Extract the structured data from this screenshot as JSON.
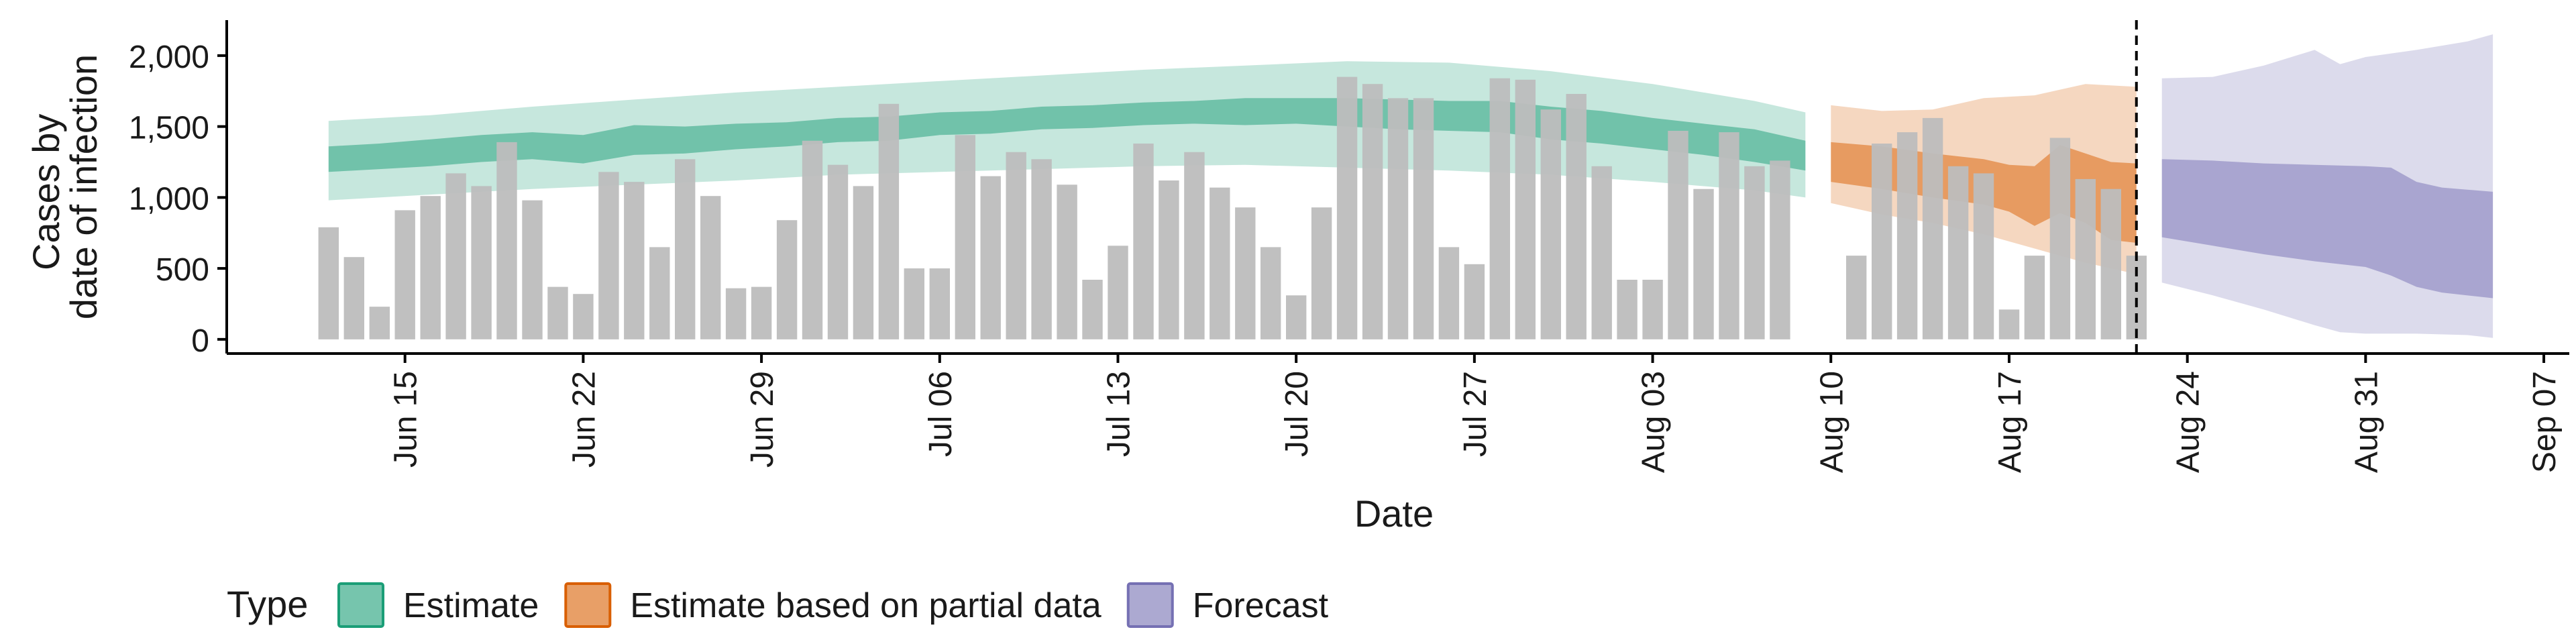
{
  "chart_data": {
    "type": "bar",
    "xlabel": "Date",
    "ylabel_lines": [
      "Cases by",
      "date of infection"
    ],
    "y_ticks": [
      0,
      500,
      1000,
      1500,
      2000
    ],
    "y_tick_labels": [
      "0",
      "500",
      "1,000",
      "1,500",
      "2,000"
    ],
    "ylim": [
      -100,
      2250
    ],
    "xlim": [
      "2020-06-08",
      "2020-09-08"
    ],
    "x_ticks": [
      "2020-06-15",
      "2020-06-22",
      "2020-06-29",
      "2020-07-06",
      "2020-07-13",
      "2020-07-20",
      "2020-07-27",
      "2020-08-03",
      "2020-08-10",
      "2020-08-17",
      "2020-08-24",
      "2020-08-31",
      "2020-09-07"
    ],
    "x_tick_labels": [
      "Jun 15",
      "Jun 22",
      "Jun 29",
      "Jul 06",
      "Jul 13",
      "Jul 20",
      "Jul 27",
      "Aug 03",
      "Aug 10",
      "Aug 17",
      "Aug 24",
      "Aug 31",
      "Sep 07"
    ],
    "bar_color": "#bdbdbd",
    "bars": {
      "dates": [
        "2020-06-12",
        "2020-06-13",
        "2020-06-14",
        "2020-06-15",
        "2020-06-16",
        "2020-06-17",
        "2020-06-18",
        "2020-06-19",
        "2020-06-20",
        "2020-06-21",
        "2020-06-22",
        "2020-06-23",
        "2020-06-24",
        "2020-06-25",
        "2020-06-26",
        "2020-06-27",
        "2020-06-28",
        "2020-06-29",
        "2020-06-30",
        "2020-07-01",
        "2020-07-02",
        "2020-07-03",
        "2020-07-04",
        "2020-07-05",
        "2020-07-06",
        "2020-07-07",
        "2020-07-08",
        "2020-07-09",
        "2020-07-10",
        "2020-07-11",
        "2020-07-12",
        "2020-07-13",
        "2020-07-14",
        "2020-07-15",
        "2020-07-16",
        "2020-07-17",
        "2020-07-18",
        "2020-07-19",
        "2020-07-20",
        "2020-07-21",
        "2020-07-22",
        "2020-07-23",
        "2020-07-24",
        "2020-07-25",
        "2020-07-26",
        "2020-07-27",
        "2020-07-28",
        "2020-07-29",
        "2020-07-30",
        "2020-07-31",
        "2020-08-01",
        "2020-08-02",
        "2020-08-03",
        "2020-08-04",
        "2020-08-05",
        "2020-08-06",
        "2020-08-07",
        "2020-08-08",
        "2020-08-09",
        "2020-08-11",
        "2020-08-12",
        "2020-08-13",
        "2020-08-14",
        "2020-08-15",
        "2020-08-16",
        "2020-08-17",
        "2020-08-18",
        "2020-08-19",
        "2020-08-20",
        "2020-08-21",
        "2020-08-22"
      ],
      "values": [
        790,
        580,
        230,
        910,
        1010,
        1170,
        1080,
        1390,
        980,
        370,
        320,
        1180,
        1110,
        650,
        1270,
        1010,
        360,
        370,
        840,
        1400,
        1230,
        1080,
        1660,
        500,
        500,
        1440,
        1150,
        1320,
        1270,
        1090,
        420,
        660,
        1380,
        1120,
        1320,
        1070,
        930,
        650,
        310,
        930,
        1850,
        1800,
        1700,
        1700,
        650,
        530,
        1840,
        1830,
        1620,
        1730,
        1220,
        420,
        420,
        1470,
        1060,
        1460,
        1220,
        1260,
        0,
        590,
        1380,
        1460,
        1560,
        1220,
        1170,
        210,
        590,
        1420,
        1130,
        1060,
        590
      ]
    },
    "vline": {
      "date": "2020-08-22",
      "style": "dashed",
      "color": "#000000"
    },
    "series": [
      {
        "name": "Estimate",
        "color": "#1b9e77",
        "ribbons": [
          {
            "dates": [
              "2020-06-12",
              "2020-06-16",
              "2020-06-20",
              "2020-06-24",
              "2020-06-28",
              "2020-07-02",
              "2020-07-06",
              "2020-07-10",
              "2020-07-14",
              "2020-07-18",
              "2020-07-22",
              "2020-07-26",
              "2020-07-30",
              "2020-08-03",
              "2020-08-07",
              "2020-08-09"
            ],
            "lower": [
              980,
              1020,
              1060,
              1090,
              1120,
              1160,
              1180,
              1200,
              1220,
              1230,
              1210,
              1190,
              1160,
              1110,
              1050,
              1000
            ],
            "upper": [
              1540,
              1580,
              1640,
              1690,
              1740,
              1780,
              1820,
              1860,
              1900,
              1930,
              1960,
              1950,
              1890,
              1800,
              1680,
              1600
            ]
          },
          {
            "dates": [
              "2020-06-12",
              "2020-06-14",
              "2020-06-16",
              "2020-06-18",
              "2020-06-20",
              "2020-06-22",
              "2020-06-24",
              "2020-06-26",
              "2020-06-28",
              "2020-06-30",
              "2020-07-02",
              "2020-07-04",
              "2020-07-06",
              "2020-07-08",
              "2020-07-10",
              "2020-07-12",
              "2020-07-14",
              "2020-07-16",
              "2020-07-18",
              "2020-07-20",
              "2020-07-22",
              "2020-07-24",
              "2020-07-26",
              "2020-07-28",
              "2020-07-30",
              "2020-08-01",
              "2020-08-03",
              "2020-08-05",
              "2020-08-07",
              "2020-08-09"
            ],
            "lower": [
              1180,
              1200,
              1220,
              1250,
              1270,
              1240,
              1300,
              1310,
              1340,
              1360,
              1390,
              1400,
              1440,
              1450,
              1480,
              1490,
              1510,
              1520,
              1510,
              1520,
              1500,
              1480,
              1470,
              1460,
              1410,
              1380,
              1340,
              1300,
              1250,
              1190
            ],
            "upper": [
              1360,
              1380,
              1410,
              1440,
              1460,
              1440,
              1510,
              1500,
              1520,
              1530,
              1560,
              1570,
              1600,
              1610,
              1640,
              1650,
              1670,
              1680,
              1700,
              1700,
              1700,
              1690,
              1680,
              1680,
              1640,
              1610,
              1560,
              1520,
              1480,
              1400
            ]
          }
        ]
      },
      {
        "name": "Estimate based on partial data",
        "color": "#d95f02",
        "ribbons": [
          {
            "dates": [
              "2020-08-10",
              "2020-08-12",
              "2020-08-14",
              "2020-08-16",
              "2020-08-18",
              "2020-08-20",
              "2020-08-22"
            ],
            "lower": [
              960,
              880,
              820,
              740,
              640,
              540,
              460
            ],
            "upper": [
              1650,
              1610,
              1620,
              1700,
              1720,
              1800,
              1780
            ]
          },
          {
            "dates": [
              "2020-08-10",
              "2020-08-12",
              "2020-08-14",
              "2020-08-16",
              "2020-08-17",
              "2020-08-18",
              "2020-08-19",
              "2020-08-20",
              "2020-08-21",
              "2020-08-22"
            ],
            "lower": [
              1110,
              1060,
              1000,
              950,
              900,
              800,
              890,
              820,
              700,
              680
            ],
            "upper": [
              1390,
              1360,
              1310,
              1270,
              1230,
              1220,
              1370,
              1310,
              1250,
              1240
            ]
          }
        ]
      },
      {
        "name": "Forecast",
        "color": "#7570b3",
        "ribbons": [
          {
            "dates": [
              "2020-08-23",
              "2020-08-25",
              "2020-08-27",
              "2020-08-29",
              "2020-08-30",
              "2020-08-31",
              "2020-09-02",
              "2020-09-04",
              "2020-09-05"
            ],
            "lower": [
              400,
              310,
              210,
              100,
              50,
              40,
              40,
              30,
              10
            ],
            "upper": [
              1840,
              1850,
              1930,
              2040,
              1940,
              1990,
              2040,
              2100,
              2150
            ]
          },
          {
            "dates": [
              "2020-08-23",
              "2020-08-25",
              "2020-08-27",
              "2020-08-29",
              "2020-08-31",
              "2020-09-01",
              "2020-09-02",
              "2020-09-03",
              "2020-09-05"
            ],
            "lower": [
              720,
              660,
              600,
              550,
              510,
              450,
              370,
              330,
              290
            ],
            "upper": [
              1270,
              1260,
              1240,
              1230,
              1220,
              1210,
              1110,
              1070,
              1040
            ]
          }
        ]
      }
    ],
    "legend": {
      "position": "bottom",
      "title": "Type",
      "entries": [
        "Estimate",
        "Estimate based on partial data",
        "Forecast"
      ]
    }
  }
}
